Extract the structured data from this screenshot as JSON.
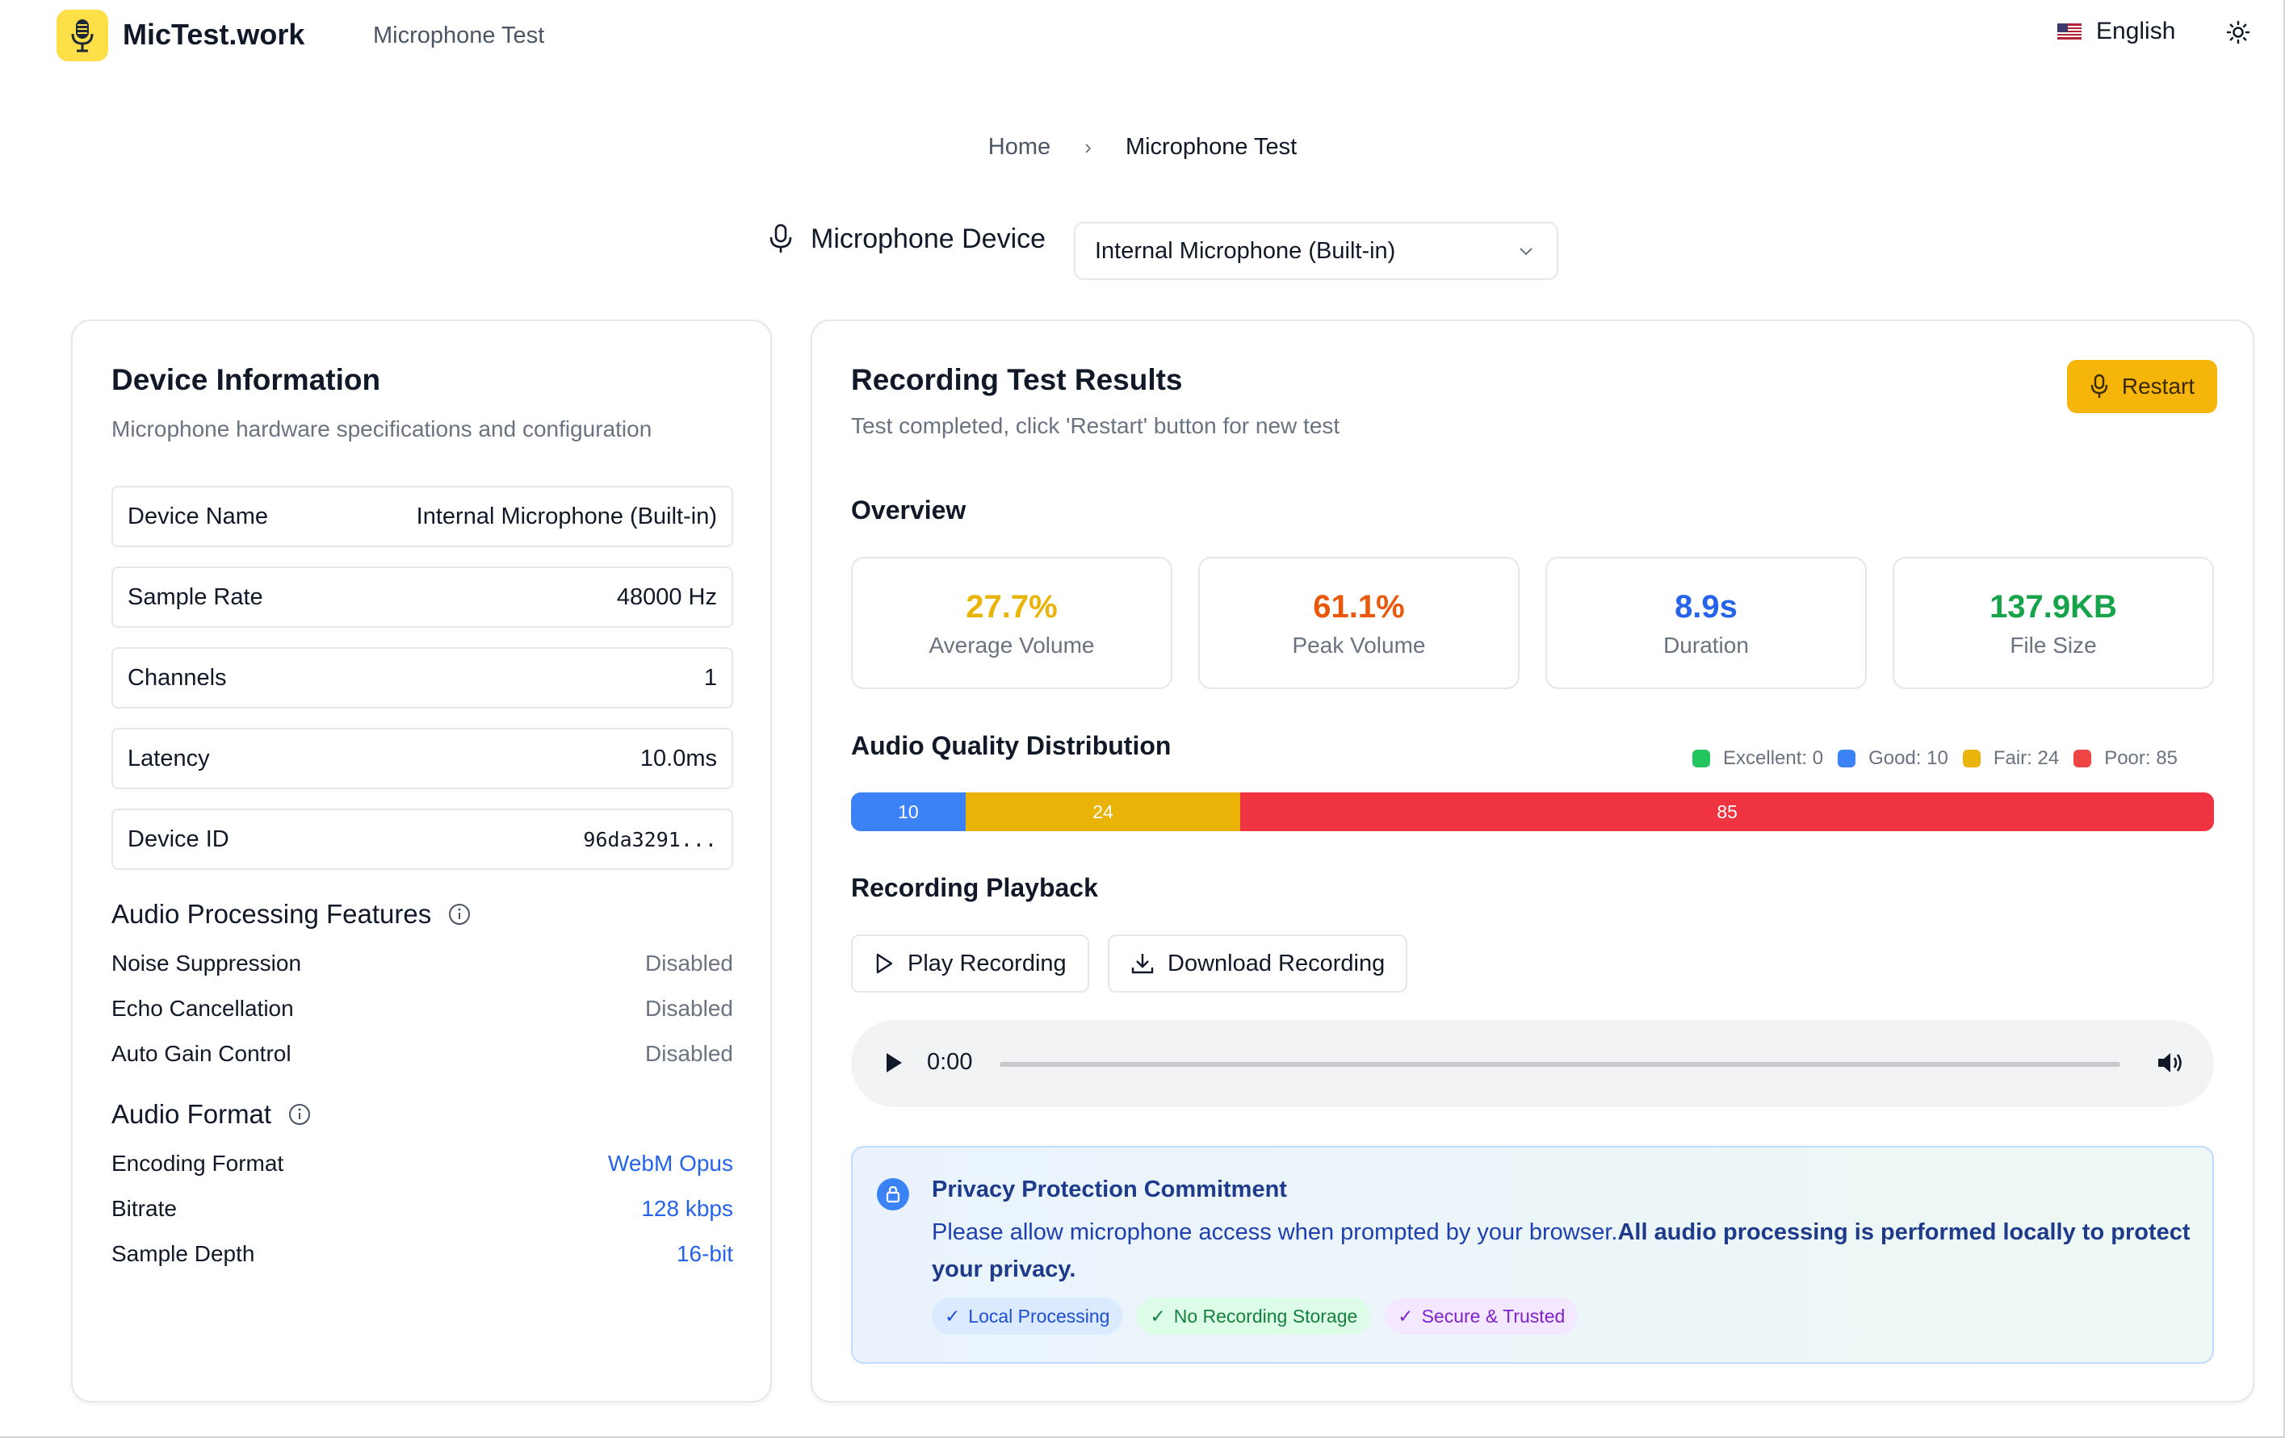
{
  "header": {
    "logo_text": "MicTest.work",
    "nav_link": "Microphone Test",
    "language": "English"
  },
  "breadcrumb": {
    "home": "Home",
    "current": "Microphone Test"
  },
  "device": {
    "label": "Microphone Device",
    "selected": "Internal Microphone (Built-in)"
  },
  "device_info": {
    "title": "Device Information",
    "subtitle": "Microphone hardware specifications and configuration",
    "rows": [
      {
        "key": "Device Name",
        "value": "Internal Microphone (Built-in)"
      },
      {
        "key": "Sample Rate",
        "value": "48000 Hz"
      },
      {
        "key": "Channels",
        "value": "1"
      },
      {
        "key": "Latency",
        "value": "10.0ms"
      },
      {
        "key": "Device ID",
        "value": "96da3291..."
      }
    ],
    "processing": {
      "title": "Audio Processing Features",
      "items": [
        {
          "key": "Noise Suppression",
          "value": "Disabled"
        },
        {
          "key": "Echo Cancellation",
          "value": "Disabled"
        },
        {
          "key": "Auto Gain Control",
          "value": "Disabled"
        }
      ]
    },
    "format": {
      "title": "Audio Format",
      "items": [
        {
          "key": "Encoding Format",
          "value": "WebM Opus"
        },
        {
          "key": "Bitrate",
          "value": "128 kbps"
        },
        {
          "key": "Sample Depth",
          "value": "16-bit"
        }
      ]
    }
  },
  "results": {
    "title": "Recording Test Results",
    "subtitle": "Test completed, click 'Restart' button for new test",
    "restart_label": "Restart",
    "overview_title": "Overview",
    "stats": [
      {
        "value": "27.7%",
        "label": "Average Volume",
        "color": "#eab308"
      },
      {
        "value": "61.1%",
        "label": "Peak Volume",
        "color": "#ea580c"
      },
      {
        "value": "8.9s",
        "label": "Duration",
        "color": "#2563eb"
      },
      {
        "value": "137.9KB",
        "label": "File Size",
        "color": "#16a34a"
      }
    ],
    "quality": {
      "title": "Audio Quality Distribution",
      "legend": [
        {
          "label": "Excellent: 0",
          "color": "#22c55e"
        },
        {
          "label": "Good: 10",
          "color": "#3b82f6"
        },
        {
          "label": "Fair: 24",
          "color": "#eab308"
        },
        {
          "label": "Poor: 85",
          "color": "#ef4444"
        }
      ],
      "segments": [
        {
          "name": "Good",
          "count": 10,
          "label": "10",
          "color": "#3b82f6"
        },
        {
          "name": "Fair",
          "count": 24,
          "label": "24",
          "color": "#eab308"
        },
        {
          "name": "Poor",
          "count": 85,
          "label": "85",
          "color": "#ef3340"
        }
      ]
    },
    "playback": {
      "title": "Recording Playback",
      "play_label": "Play Recording",
      "download_label": "Download Recording",
      "time": "0:00"
    },
    "privacy": {
      "title": "Privacy Protection Commitment",
      "text_plain": "Please allow microphone access when prompted by your browser.",
      "text_bold": "All audio processing is performed locally to protect your privacy.",
      "tags": [
        "Local Processing",
        "No Recording Storage",
        "Secure & Trusted"
      ]
    }
  }
}
